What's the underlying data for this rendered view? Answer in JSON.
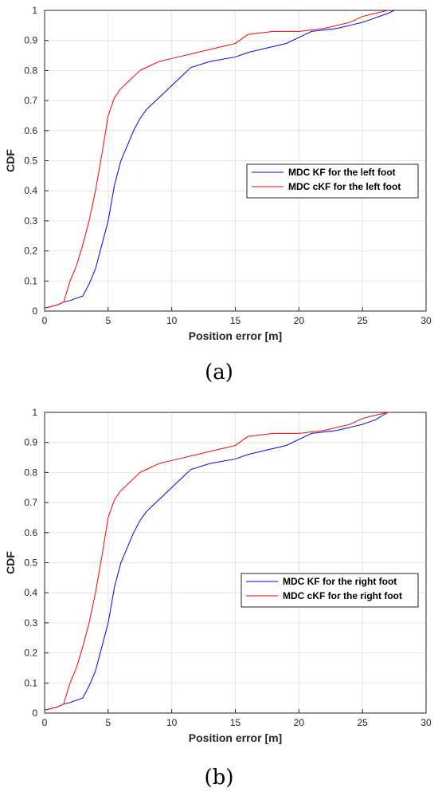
{
  "chart_data": [
    {
      "type": "line",
      "caption": "(a)",
      "xlabel": "Position error [m]",
      "ylabel": "CDF",
      "xlim": [
        0,
        30
      ],
      "ylim": [
        0,
        1
      ],
      "xticks": [
        "0",
        "5",
        "10",
        "15",
        "20",
        "25",
        "30"
      ],
      "yticks": [
        "0",
        "0.1",
        "0.2",
        "0.3",
        "0.4",
        "0.5",
        "0.6",
        "0.7",
        "0.8",
        "0.9",
        "1"
      ],
      "grid": true,
      "legend": "center-right",
      "colors": {
        "kf": "#0000ff",
        "ckf": "#ff0000"
      },
      "series": [
        {
          "name": "MDC KF for the left foot",
          "color": "#0000ff",
          "x": [
            0,
            1,
            1.5,
            2,
            3,
            3.5,
            4,
            4.5,
            5,
            5.5,
            6,
            6.5,
            7,
            7.5,
            8,
            8.5,
            9,
            10,
            11,
            11.5,
            13,
            15,
            16,
            17,
            18,
            19,
            20,
            21,
            23,
            25,
            26,
            27,
            27.5
          ],
          "y": [
            0.01,
            0.02,
            0.03,
            0.035,
            0.05,
            0.09,
            0.14,
            0.22,
            0.3,
            0.42,
            0.5,
            0.55,
            0.6,
            0.64,
            0.67,
            0.69,
            0.71,
            0.75,
            0.79,
            0.81,
            0.83,
            0.845,
            0.86,
            0.87,
            0.88,
            0.89,
            0.91,
            0.93,
            0.94,
            0.96,
            0.975,
            0.99,
            1.0
          ]
        },
        {
          "name": "MDC cKF for the left foot",
          "color": "#ff0000",
          "x": [
            0,
            1,
            1.5,
            2,
            2.5,
            3,
            3.5,
            4,
            4.5,
            5,
            5.5,
            6,
            6.5,
            7,
            7.5,
            8,
            9,
            10,
            11,
            12,
            14,
            15,
            16,
            17,
            18,
            20,
            22,
            24,
            25,
            26,
            27
          ],
          "y": [
            0.01,
            0.02,
            0.03,
            0.1,
            0.15,
            0.22,
            0.3,
            0.4,
            0.52,
            0.65,
            0.71,
            0.74,
            0.76,
            0.78,
            0.8,
            0.81,
            0.83,
            0.84,
            0.85,
            0.86,
            0.88,
            0.89,
            0.92,
            0.925,
            0.93,
            0.93,
            0.94,
            0.96,
            0.98,
            0.99,
            1.0
          ]
        }
      ]
    },
    {
      "type": "line",
      "caption": "(b)",
      "xlabel": "Position error [m]",
      "ylabel": "CDF",
      "xlim": [
        0,
        30
      ],
      "ylim": [
        0,
        1
      ],
      "xticks": [
        "0",
        "5",
        "10",
        "15",
        "20",
        "25",
        "30"
      ],
      "yticks": [
        "0",
        "0.1",
        "0.2",
        "0.3",
        "0.4",
        "0.5",
        "0.6",
        "0.7",
        "0.8",
        "0.9",
        "1"
      ],
      "grid": true,
      "legend": "center-right",
      "colors": {
        "kf": "#0000ff",
        "ckf": "#ff0000"
      },
      "series": [
        {
          "name": "MDC KF for the right foot",
          "color": "#0000ff",
          "x": [
            0,
            1,
            1.5,
            2,
            3,
            3.5,
            4,
            4.5,
            5,
            5.5,
            6,
            6.5,
            7,
            7.5,
            8,
            8.5,
            9,
            10,
            11,
            11.5,
            13,
            15,
            16,
            17,
            18,
            19,
            20,
            21,
            23,
            25,
            26,
            27
          ],
          "y": [
            0.01,
            0.02,
            0.03,
            0.035,
            0.05,
            0.09,
            0.14,
            0.22,
            0.3,
            0.42,
            0.5,
            0.55,
            0.6,
            0.64,
            0.67,
            0.69,
            0.71,
            0.75,
            0.79,
            0.81,
            0.83,
            0.845,
            0.86,
            0.87,
            0.88,
            0.89,
            0.91,
            0.93,
            0.94,
            0.96,
            0.975,
            1.0
          ]
        },
        {
          "name": "MDC cKF for the right foot",
          "color": "#ff0000",
          "x": [
            0,
            1,
            1.5,
            2,
            2.5,
            3,
            3.5,
            4,
            4.5,
            5,
            5.5,
            6,
            6.5,
            7,
            7.5,
            8,
            9,
            10,
            11,
            12,
            14,
            15,
            16,
            17,
            18,
            20,
            22,
            24,
            25,
            26,
            27
          ],
          "y": [
            0.01,
            0.02,
            0.03,
            0.1,
            0.15,
            0.22,
            0.3,
            0.4,
            0.52,
            0.65,
            0.71,
            0.74,
            0.76,
            0.78,
            0.8,
            0.81,
            0.83,
            0.84,
            0.85,
            0.86,
            0.88,
            0.89,
            0.92,
            0.925,
            0.93,
            0.93,
            0.94,
            0.96,
            0.98,
            0.99,
            1.0
          ]
        }
      ]
    }
  ]
}
